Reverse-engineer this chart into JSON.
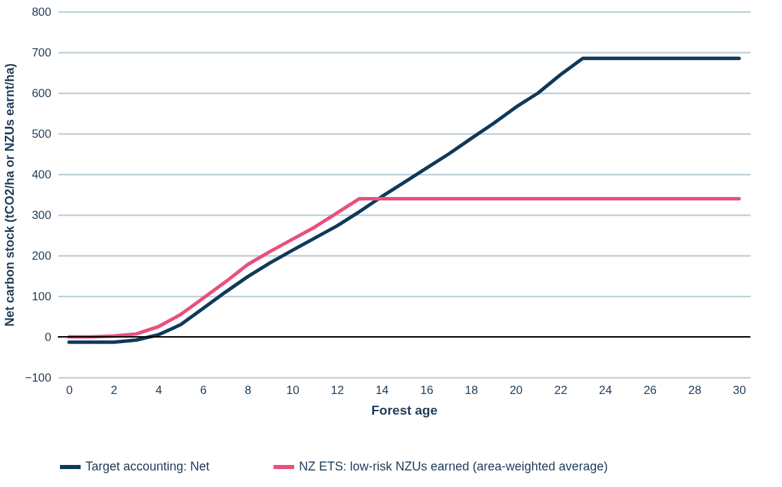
{
  "chart_data": {
    "type": "line",
    "xlabel": "Forest age",
    "ylabel": "Net carbon stock  (tCO2/ha or NZUs earnt/ha)",
    "x": [
      0,
      1,
      2,
      3,
      4,
      5,
      6,
      7,
      8,
      9,
      10,
      11,
      12,
      13,
      14,
      15,
      16,
      17,
      18,
      19,
      20,
      21,
      22,
      23,
      24,
      25,
      26,
      27,
      28,
      29,
      30
    ],
    "series": [
      {
        "name": "Target accounting: Net",
        "color": "#0e3a5a",
        "values": [
          -13,
          -13,
          -13,
          -8,
          5,
          30,
          70,
          110,
          148,
          182,
          213,
          243,
          273,
          308,
          345,
          380,
          415,
          450,
          488,
          525,
          565,
          600,
          645,
          685,
          685,
          685,
          685,
          685,
          685,
          685,
          685
        ]
      },
      {
        "name": "NZ ETS: low-risk NZUs earned (area-weighted average)",
        "color": "#e8507e",
        "values": [
          0,
          0,
          2,
          7,
          25,
          55,
          95,
          135,
          178,
          210,
          240,
          270,
          305,
          340,
          340,
          340,
          340,
          340,
          340,
          340,
          340,
          340,
          340,
          340,
          340,
          340,
          340,
          340,
          340,
          340,
          340
        ]
      }
    ],
    "xlim": [
      -0.5,
      30.5
    ],
    "xticks": [
      0,
      2,
      4,
      6,
      8,
      10,
      12,
      14,
      16,
      18,
      20,
      22,
      24,
      26,
      28,
      30
    ],
    "ylim": [
      -100,
      800
    ],
    "yticks": [
      -100,
      0,
      100,
      200,
      300,
      400,
      500,
      600,
      700,
      800
    ],
    "ref_lines": [
      {
        "axis": "y",
        "value": 0,
        "color": "#000000"
      }
    ],
    "grid": "y",
    "legend": "bottom",
    "line_style": "solid",
    "marker": "none"
  }
}
